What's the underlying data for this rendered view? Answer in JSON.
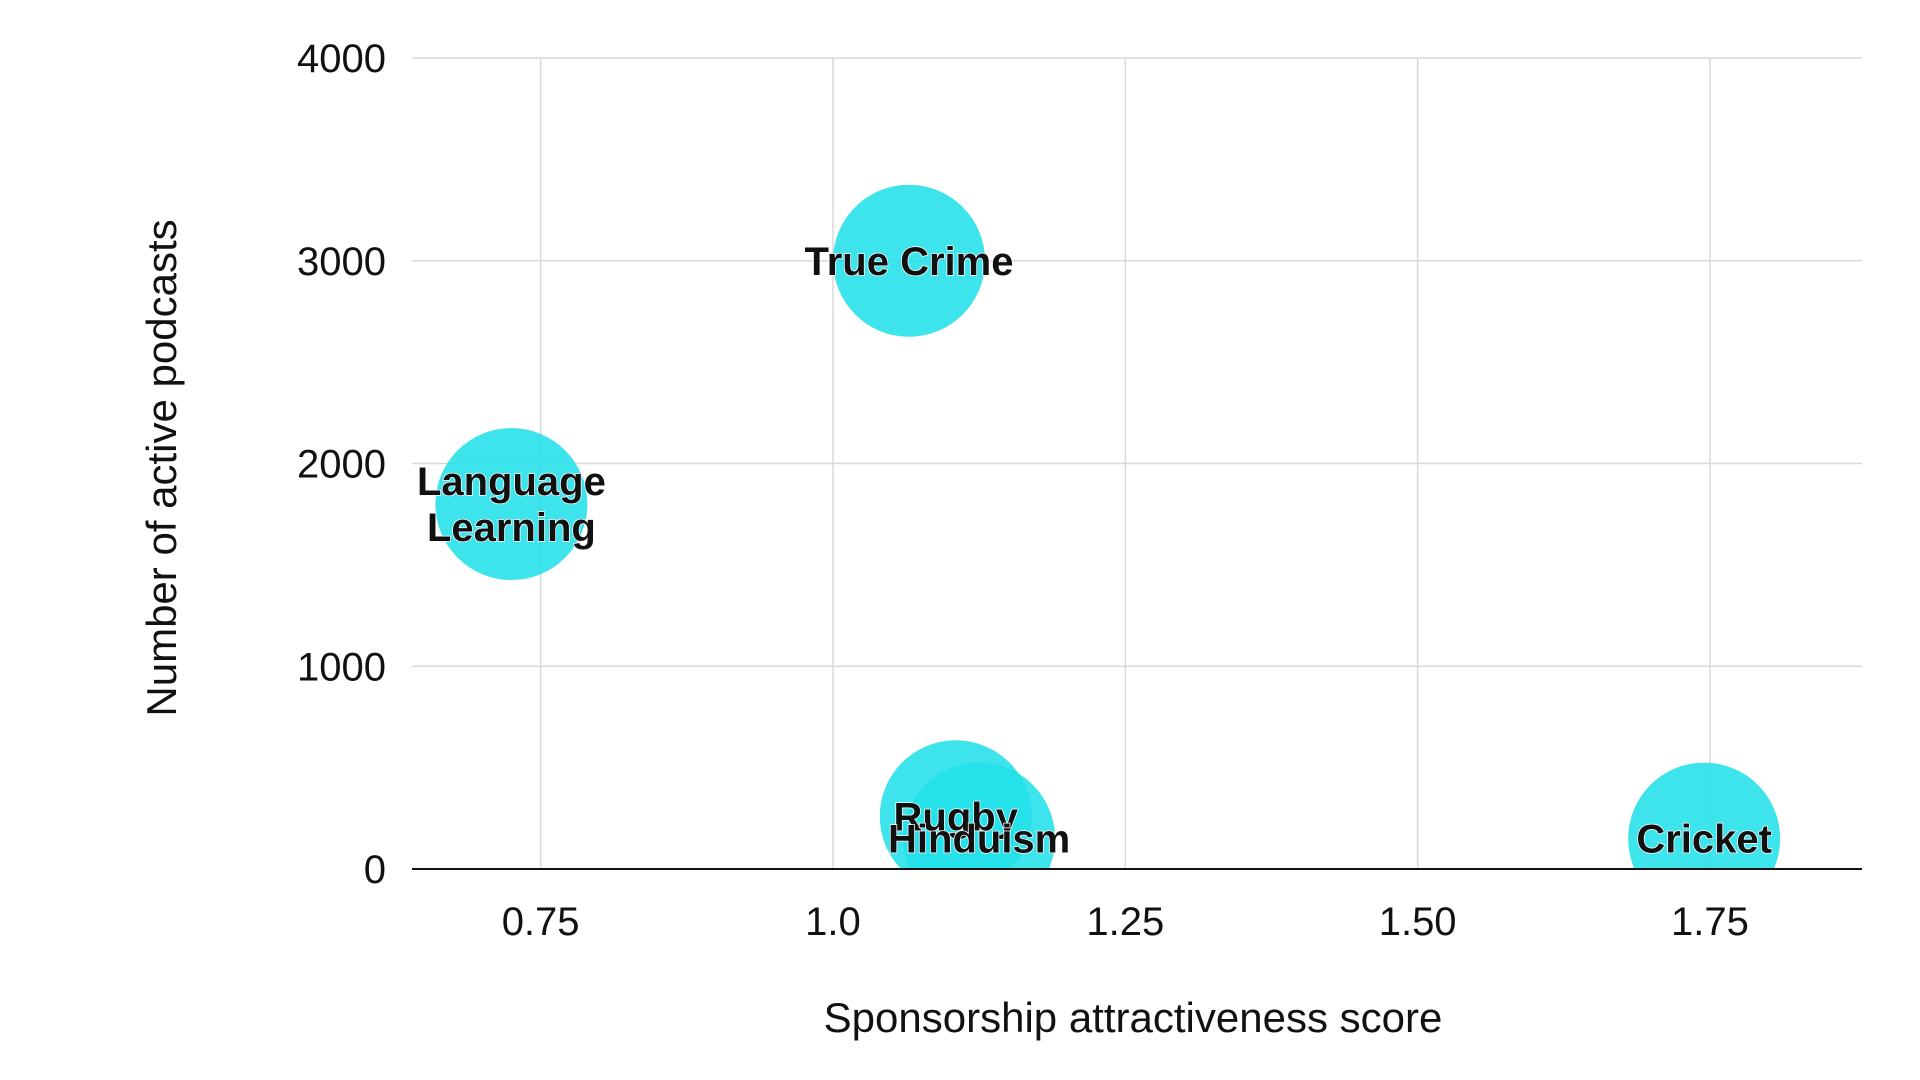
{
  "chart_data": {
    "type": "scatter",
    "xlabel": "Sponsorship attractiveness score",
    "ylabel": "Number of active podcasts",
    "xlim": [
      0.64,
      1.88
    ],
    "ylim": [
      0,
      4000
    ],
    "x_ticks": [
      0.75,
      1.0,
      1.25,
      1.5,
      1.75
    ],
    "x_tick_labels": [
      "0.75",
      "1.0",
      "1.25",
      "1.50",
      "1.75"
    ],
    "y_ticks": [
      0,
      1000,
      2000,
      3000,
      4000
    ],
    "y_tick_labels": [
      "0",
      "1000",
      "2000",
      "3000",
      "4000"
    ],
    "grid": true,
    "bubble_color": "#22e0e8",
    "points": [
      {
        "label": [
          "True Crime"
        ],
        "x": 1.065,
        "y": 3000
      },
      {
        "label": [
          "Language",
          "Learning"
        ],
        "x": 0.725,
        "y": 1800
      },
      {
        "label": [
          "Rugby"
        ],
        "x": 1.105,
        "y": 260
      },
      {
        "label": [
          "Hinduism"
        ],
        "x": 1.125,
        "y": 150
      },
      {
        "label": [
          "Cricket"
        ],
        "x": 1.745,
        "y": 150
      }
    ]
  }
}
